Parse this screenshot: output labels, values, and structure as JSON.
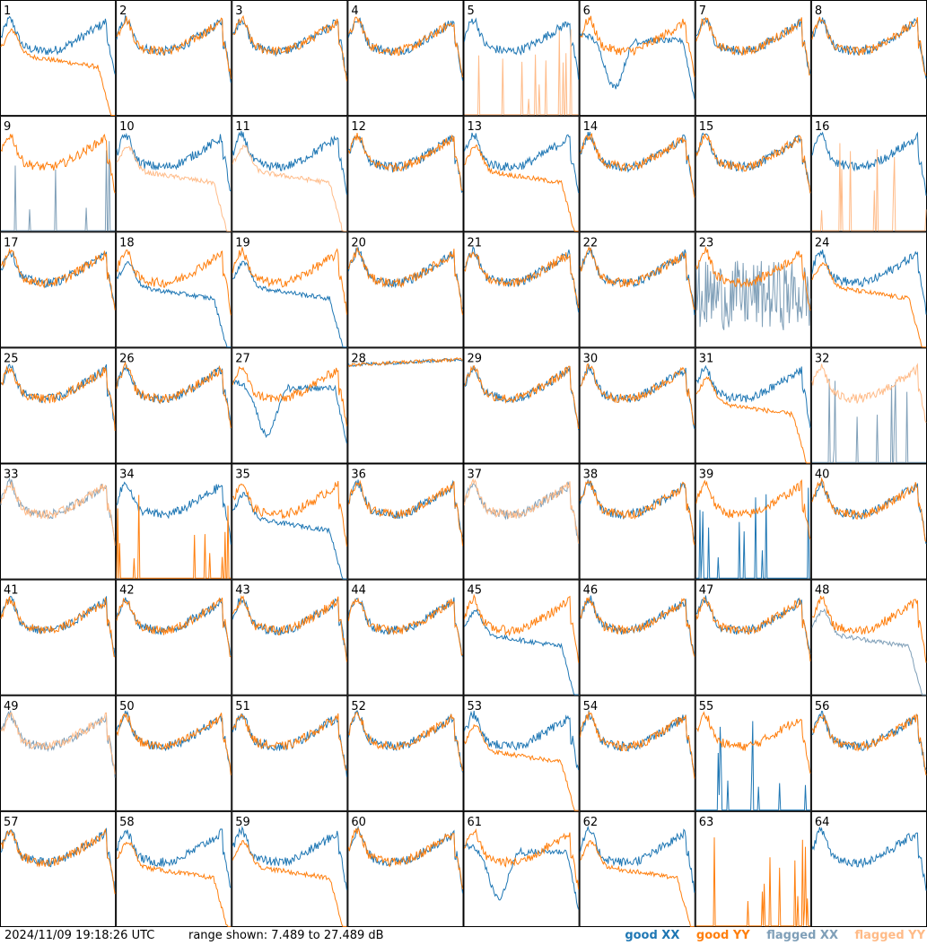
{
  "chart_data": {
    "type": "line",
    "title": "",
    "panel_labels": [
      "1",
      "2",
      "3",
      "4",
      "5",
      "6",
      "7",
      "8",
      "9",
      "10",
      "11",
      "12",
      "13",
      "14",
      "15",
      "16",
      "17",
      "18",
      "19",
      "20",
      "21",
      "22",
      "23",
      "24",
      "25",
      "26",
      "27",
      "28",
      "29",
      "30",
      "31",
      "32",
      "33",
      "34",
      "35",
      "36",
      "37",
      "38",
      "39",
      "40",
      "41",
      "42",
      "43",
      "44",
      "45",
      "46",
      "47",
      "48",
      "49",
      "50",
      "51",
      "52",
      "53",
      "54",
      "55",
      "56",
      "57",
      "58",
      "59",
      "60",
      "61",
      "62",
      "63",
      "64"
    ],
    "grid": {
      "rows": 8,
      "cols": 8
    },
    "y_range_db": [
      7.489,
      27.489
    ],
    "series_styles": [
      {
        "name": "good XX",
        "color": "#1f77b4"
      },
      {
        "name": "good YY",
        "color": "#ff7f0e"
      },
      {
        "name": "flagged XX",
        "color": "#7f9fb8"
      },
      {
        "name": "flagged YY",
        "color": "#ffbb88"
      }
    ],
    "panels": [
      {
        "xx": "bandpass",
        "yy": "droop",
        "xy_flag": [
          false,
          false
        ]
      },
      {
        "xx": "bandpass",
        "yy": "bandpass",
        "xy_flag": [
          false,
          false
        ]
      },
      {
        "xx": "bandpass",
        "yy": "bandpass",
        "xy_flag": [
          false,
          false
        ]
      },
      {
        "xx": "bandpass",
        "yy": "bandpass",
        "xy_flag": [
          false,
          false
        ]
      },
      {
        "xx": "bandpass",
        "yy": "spikes",
        "xy_flag": [
          false,
          true
        ]
      },
      {
        "xx": "dip",
        "yy": "bandpass",
        "xy_flag": [
          false,
          false
        ]
      },
      {
        "xx": "bandpass",
        "yy": "bandpass",
        "xy_flag": [
          false,
          false
        ]
      },
      {
        "xx": "bandpass",
        "yy": "bandpass",
        "xy_flag": [
          false,
          false
        ]
      },
      {
        "xx": "spikes",
        "yy": "bandpass",
        "xy_flag": [
          true,
          false
        ]
      },
      {
        "xx": "bandpass",
        "yy": "droop",
        "xy_flag": [
          false,
          true
        ]
      },
      {
        "xx": "bandpass",
        "yy": "droop",
        "xy_flag": [
          false,
          true
        ]
      },
      {
        "xx": "bandpass",
        "yy": "bandpass",
        "xy_flag": [
          false,
          false
        ]
      },
      {
        "xx": "bandpass",
        "yy": "droop",
        "xy_flag": [
          false,
          false
        ]
      },
      {
        "xx": "bandpass",
        "yy": "bandpass",
        "xy_flag": [
          false,
          false
        ]
      },
      {
        "xx": "bandpass",
        "yy": "bandpass",
        "xy_flag": [
          false,
          false
        ]
      },
      {
        "xx": "bandpass",
        "yy": "spikes",
        "xy_flag": [
          false,
          true
        ]
      },
      {
        "xx": "bandpass",
        "yy": "bandpass",
        "xy_flag": [
          false,
          false
        ]
      },
      {
        "xx": "droop",
        "yy": "bandpass",
        "xy_flag": [
          false,
          false
        ]
      },
      {
        "xx": "droop",
        "yy": "bandpass",
        "xy_flag": [
          false,
          false
        ]
      },
      {
        "xx": "bandpass",
        "yy": "bandpass",
        "xy_flag": [
          false,
          false
        ]
      },
      {
        "xx": "bandpass",
        "yy": "bandpass",
        "xy_flag": [
          false,
          false
        ]
      },
      {
        "xx": "bandpass",
        "yy": "bandpass",
        "xy_flag": [
          false,
          false
        ]
      },
      {
        "xx": "noise",
        "yy": "bandpass",
        "xy_flag": [
          true,
          false
        ]
      },
      {
        "xx": "bandpass",
        "yy": "droop",
        "xy_flag": [
          false,
          false
        ]
      },
      {
        "xx": "bandpass",
        "yy": "bandpass",
        "xy_flag": [
          false,
          false
        ]
      },
      {
        "xx": "bandpass",
        "yy": "bandpass",
        "xy_flag": [
          false,
          false
        ]
      },
      {
        "xx": "dip",
        "yy": "bandpass",
        "xy_flag": [
          false,
          false
        ]
      },
      {
        "xx": "flat",
        "yy": "flat",
        "xy_flag": [
          false,
          false
        ]
      },
      {
        "xx": "bandpass",
        "yy": "bandpass",
        "xy_flag": [
          false,
          false
        ]
      },
      {
        "xx": "bandpass",
        "yy": "bandpass",
        "xy_flag": [
          false,
          false
        ]
      },
      {
        "xx": "bandpass",
        "yy": "droop",
        "xy_flag": [
          false,
          false
        ]
      },
      {
        "xx": "spikes",
        "yy": "bandpass",
        "xy_flag": [
          true,
          true
        ]
      },
      {
        "xx": "bandpass",
        "yy": "bandpass",
        "xy_flag": [
          true,
          true
        ]
      },
      {
        "xx": "bandpass",
        "yy": "spikes",
        "xy_flag": [
          false,
          false
        ]
      },
      {
        "xx": "droop",
        "yy": "bandpass",
        "xy_flag": [
          false,
          false
        ]
      },
      {
        "xx": "bandpass",
        "yy": "bandpass",
        "xy_flag": [
          false,
          false
        ]
      },
      {
        "xx": "bandpass",
        "yy": "bandpass",
        "xy_flag": [
          true,
          true
        ]
      },
      {
        "xx": "bandpass",
        "yy": "bandpass",
        "xy_flag": [
          false,
          false
        ]
      },
      {
        "xx": "spikes",
        "yy": "bandpass",
        "xy_flag": [
          false,
          false
        ]
      },
      {
        "xx": "bandpass",
        "yy": "bandpass",
        "xy_flag": [
          false,
          false
        ]
      },
      {
        "xx": "bandpass",
        "yy": "bandpass",
        "xy_flag": [
          false,
          false
        ]
      },
      {
        "xx": "bandpass",
        "yy": "bandpass",
        "xy_flag": [
          false,
          false
        ]
      },
      {
        "xx": "bandpass",
        "yy": "bandpass",
        "xy_flag": [
          false,
          false
        ]
      },
      {
        "xx": "bandpass",
        "yy": "bandpass",
        "xy_flag": [
          false,
          false
        ]
      },
      {
        "xx": "droop",
        "yy": "bandpass",
        "xy_flag": [
          false,
          false
        ]
      },
      {
        "xx": "bandpass",
        "yy": "bandpass",
        "xy_flag": [
          false,
          false
        ]
      },
      {
        "xx": "bandpass",
        "yy": "bandpass",
        "xy_flag": [
          false,
          false
        ]
      },
      {
        "xx": "droop",
        "yy": "bandpass",
        "xy_flag": [
          true,
          false
        ]
      },
      {
        "xx": "bandpass",
        "yy": "bandpass",
        "xy_flag": [
          true,
          true
        ]
      },
      {
        "xx": "bandpass",
        "yy": "bandpass",
        "xy_flag": [
          false,
          false
        ]
      },
      {
        "xx": "bandpass",
        "yy": "bandpass",
        "xy_flag": [
          false,
          false
        ]
      },
      {
        "xx": "bandpass",
        "yy": "bandpass",
        "xy_flag": [
          false,
          false
        ]
      },
      {
        "xx": "bandpass",
        "yy": "droop",
        "xy_flag": [
          false,
          false
        ]
      },
      {
        "xx": "bandpass",
        "yy": "bandpass",
        "xy_flag": [
          false,
          false
        ]
      },
      {
        "xx": "spikes",
        "yy": "bandpass",
        "xy_flag": [
          false,
          false
        ]
      },
      {
        "xx": "bandpass",
        "yy": "bandpass",
        "xy_flag": [
          false,
          false
        ]
      },
      {
        "xx": "bandpass",
        "yy": "bandpass",
        "xy_flag": [
          false,
          false
        ]
      },
      {
        "xx": "bandpass",
        "yy": "droop",
        "xy_flag": [
          false,
          false
        ]
      },
      {
        "xx": "bandpass",
        "yy": "droop",
        "xy_flag": [
          false,
          false
        ]
      },
      {
        "xx": "bandpass",
        "yy": "bandpass",
        "xy_flag": [
          false,
          false
        ]
      },
      {
        "xx": "dip",
        "yy": "bandpass",
        "xy_flag": [
          false,
          false
        ]
      },
      {
        "xx": "bandpass",
        "yy": "droop",
        "xy_flag": [
          false,
          false
        ]
      },
      {
        "xx": "none",
        "yy": "spikes",
        "xy_flag": [
          false,
          false
        ]
      },
      {
        "xx": "bandpass",
        "yy": "none",
        "xy_flag": [
          false,
          false
        ]
      }
    ]
  },
  "footer": {
    "timestamp": "2024/11/09 19:18:26 UTC",
    "range_text": "range shown: 7.489 to 27.489 dB",
    "legend": {
      "good_xx": "good XX",
      "good_yy": "good YY",
      "flagged_xx": "flagged XX",
      "flagged_yy": "flagged YY"
    }
  }
}
